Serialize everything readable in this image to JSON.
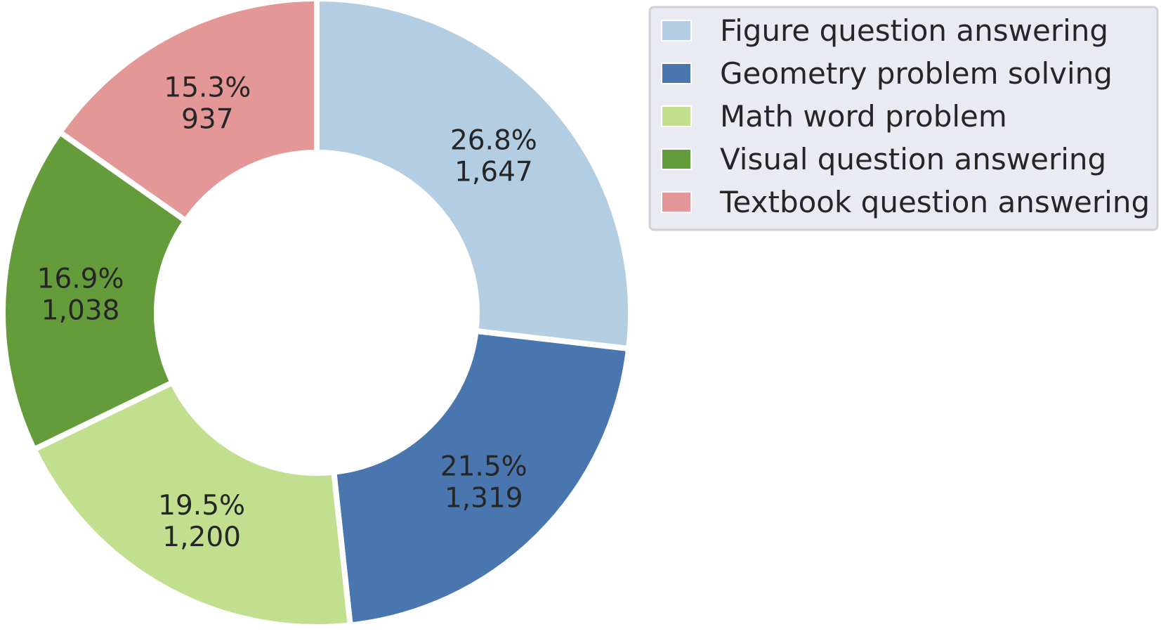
{
  "chart_data": {
    "type": "pie",
    "style": "donut",
    "title": "",
    "legend_position": "top-right",
    "categories": [
      "Figure question answering",
      "Geometry problem solving",
      "Math word problem",
      "Visual question answering",
      "Textbook question answering"
    ],
    "values": [
      1647,
      1319,
      1200,
      1038,
      937
    ],
    "percent_labels": [
      "26.8%",
      "21.5%",
      "19.5%",
      "16.9%",
      "15.3%"
    ],
    "count_labels": [
      "1,647",
      "1,319",
      "1,200",
      "1,038",
      "937"
    ],
    "colors": [
      "#b3cde3",
      "#4a76b0",
      "#c1df8e",
      "#649c3b",
      "#e49797"
    ]
  }
}
